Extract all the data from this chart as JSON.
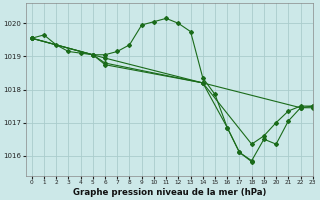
{
  "title": "Graphe pression niveau de la mer (hPa)",
  "bg_color": "#cce8e8",
  "grid_color": "#aacccc",
  "line_color": "#1a6b1a",
  "xlim": [
    -0.5,
    23
  ],
  "ylim": [
    1015.4,
    1020.6
  ],
  "yticks": [
    1016,
    1017,
    1018,
    1019,
    1020
  ],
  "xticks": [
    0,
    1,
    2,
    3,
    4,
    5,
    6,
    7,
    8,
    9,
    10,
    11,
    12,
    13,
    14,
    15,
    16,
    17,
    18,
    19,
    20,
    21,
    22,
    23
  ],
  "line1_x": [
    0,
    1,
    2,
    3,
    4,
    5,
    6,
    7,
    8,
    9,
    10,
    11,
    12,
    13,
    14,
    15,
    16,
    17,
    18
  ],
  "line1_y": [
    1019.55,
    1019.65,
    1019.35,
    1019.15,
    1019.1,
    1019.05,
    1019.05,
    1019.15,
    1019.35,
    1019.95,
    1020.05,
    1020.15,
    1020.0,
    1019.75,
    1018.35,
    1017.85,
    1016.85,
    1016.1,
    1015.82
  ],
  "line2_x": [
    0,
    6,
    14,
    22,
    23
  ],
  "line2_y": [
    1019.55,
    1018.95,
    1018.2,
    1017.45,
    1017.45
  ],
  "line3_x": [
    0,
    5,
    6,
    14,
    16,
    17,
    18,
    19,
    20,
    21,
    22,
    23
  ],
  "line3_y": [
    1019.55,
    1019.05,
    1018.75,
    1018.2,
    1016.85,
    1016.1,
    1015.85,
    1016.5,
    1016.35,
    1017.05,
    1017.45,
    1017.5
  ],
  "line4_x": [
    0,
    5,
    6,
    14,
    18,
    19,
    20,
    21,
    22,
    23
  ],
  "line4_y": [
    1019.55,
    1019.05,
    1018.8,
    1018.2,
    1016.35,
    1016.6,
    1017.0,
    1017.35,
    1017.5,
    1017.5
  ]
}
